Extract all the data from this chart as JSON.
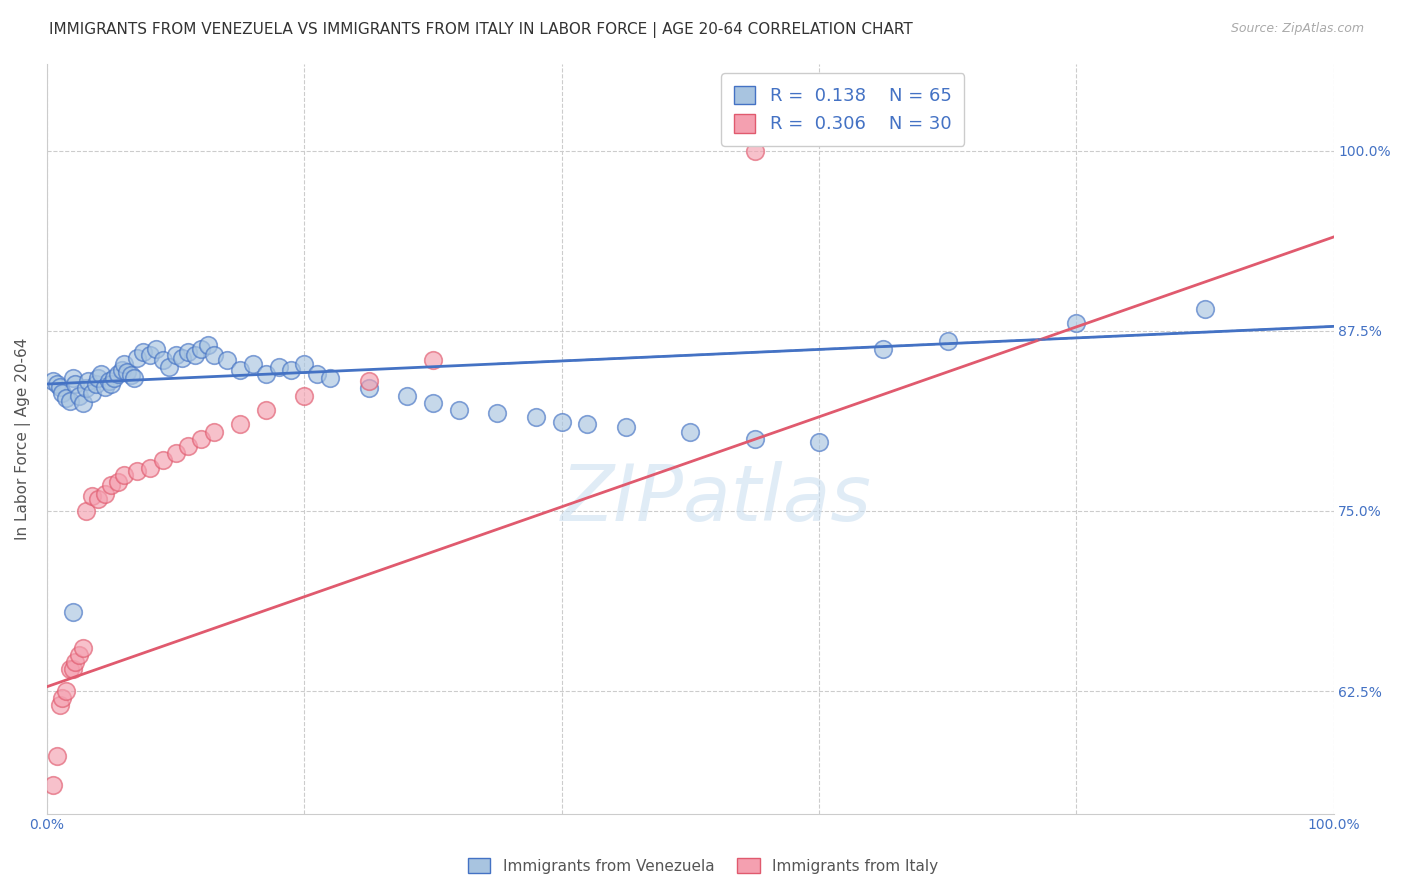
{
  "title": "IMMIGRANTS FROM VENEZUELA VS IMMIGRANTS FROM ITALY IN LABOR FORCE | AGE 20-64 CORRELATION CHART",
  "source": "Source: ZipAtlas.com",
  "ylabel": "In Labor Force | Age 20-64",
  "xlim": [
    0.0,
    1.0
  ],
  "ylim": [
    0.54,
    1.06
  ],
  "yticks_right": [
    0.625,
    0.75,
    0.875,
    1.0
  ],
  "ytick_right_labels": [
    "62.5%",
    "75.0%",
    "87.5%",
    "100.0%"
  ],
  "color_venezuela": "#a8c4e0",
  "color_italy": "#f4a0b0",
  "color_line_venezuela": "#4472c4",
  "color_line_italy": "#e05a6e",
  "background_color": "#ffffff",
  "watermark": "ZIPatlas",
  "title_fontsize": 11,
  "axis_label_fontsize": 11,
  "tick_fontsize": 10,
  "venezuela_x": [
    0.005,
    0.008,
    0.01,
    0.012,
    0.015,
    0.018,
    0.02,
    0.022,
    0.025,
    0.028,
    0.03,
    0.032,
    0.035,
    0.038,
    0.04,
    0.042,
    0.045,
    0.048,
    0.05,
    0.052,
    0.055,
    0.058,
    0.06,
    0.062,
    0.065,
    0.068,
    0.07,
    0.075,
    0.08,
    0.085,
    0.09,
    0.095,
    0.1,
    0.105,
    0.11,
    0.115,
    0.12,
    0.125,
    0.13,
    0.14,
    0.15,
    0.16,
    0.17,
    0.18,
    0.19,
    0.2,
    0.21,
    0.22,
    0.25,
    0.28,
    0.3,
    0.32,
    0.35,
    0.38,
    0.4,
    0.42,
    0.45,
    0.5,
    0.55,
    0.6,
    0.65,
    0.7,
    0.8,
    0.9,
    0.02
  ],
  "venezuela_y": [
    0.84,
    0.838,
    0.836,
    0.832,
    0.828,
    0.826,
    0.842,
    0.838,
    0.83,
    0.825,
    0.835,
    0.84,
    0.832,
    0.838,
    0.842,
    0.845,
    0.836,
    0.84,
    0.838,
    0.842,
    0.845,
    0.848,
    0.852,
    0.846,
    0.844,
    0.842,
    0.856,
    0.86,
    0.858,
    0.862,
    0.855,
    0.85,
    0.858,
    0.856,
    0.86,
    0.858,
    0.862,
    0.865,
    0.858,
    0.855,
    0.848,
    0.852,
    0.845,
    0.85,
    0.848,
    0.852,
    0.845,
    0.842,
    0.835,
    0.83,
    0.825,
    0.82,
    0.818,
    0.815,
    0.812,
    0.81,
    0.808,
    0.805,
    0.8,
    0.798,
    0.862,
    0.868,
    0.88,
    0.89,
    0.68
  ],
  "italy_x": [
    0.005,
    0.008,
    0.01,
    0.012,
    0.015,
    0.018,
    0.02,
    0.022,
    0.025,
    0.028,
    0.03,
    0.035,
    0.04,
    0.045,
    0.05,
    0.055,
    0.06,
    0.07,
    0.08,
    0.09,
    0.1,
    0.11,
    0.12,
    0.13,
    0.15,
    0.17,
    0.2,
    0.25,
    0.3,
    0.55
  ],
  "italy_y": [
    0.56,
    0.58,
    0.615,
    0.62,
    0.625,
    0.64,
    0.64,
    0.645,
    0.65,
    0.655,
    0.75,
    0.76,
    0.758,
    0.762,
    0.768,
    0.77,
    0.775,
    0.778,
    0.78,
    0.785,
    0.79,
    0.795,
    0.8,
    0.805,
    0.81,
    0.82,
    0.83,
    0.84,
    0.855,
    1.0
  ],
  "ven_line_x0": 0.0,
  "ven_line_y0": 0.838,
  "ven_line_x1": 1.0,
  "ven_line_y1": 0.878,
  "ita_line_x0": 0.0,
  "ita_line_y0": 0.628,
  "ita_line_x1": 1.0,
  "ita_line_y1": 0.94
}
